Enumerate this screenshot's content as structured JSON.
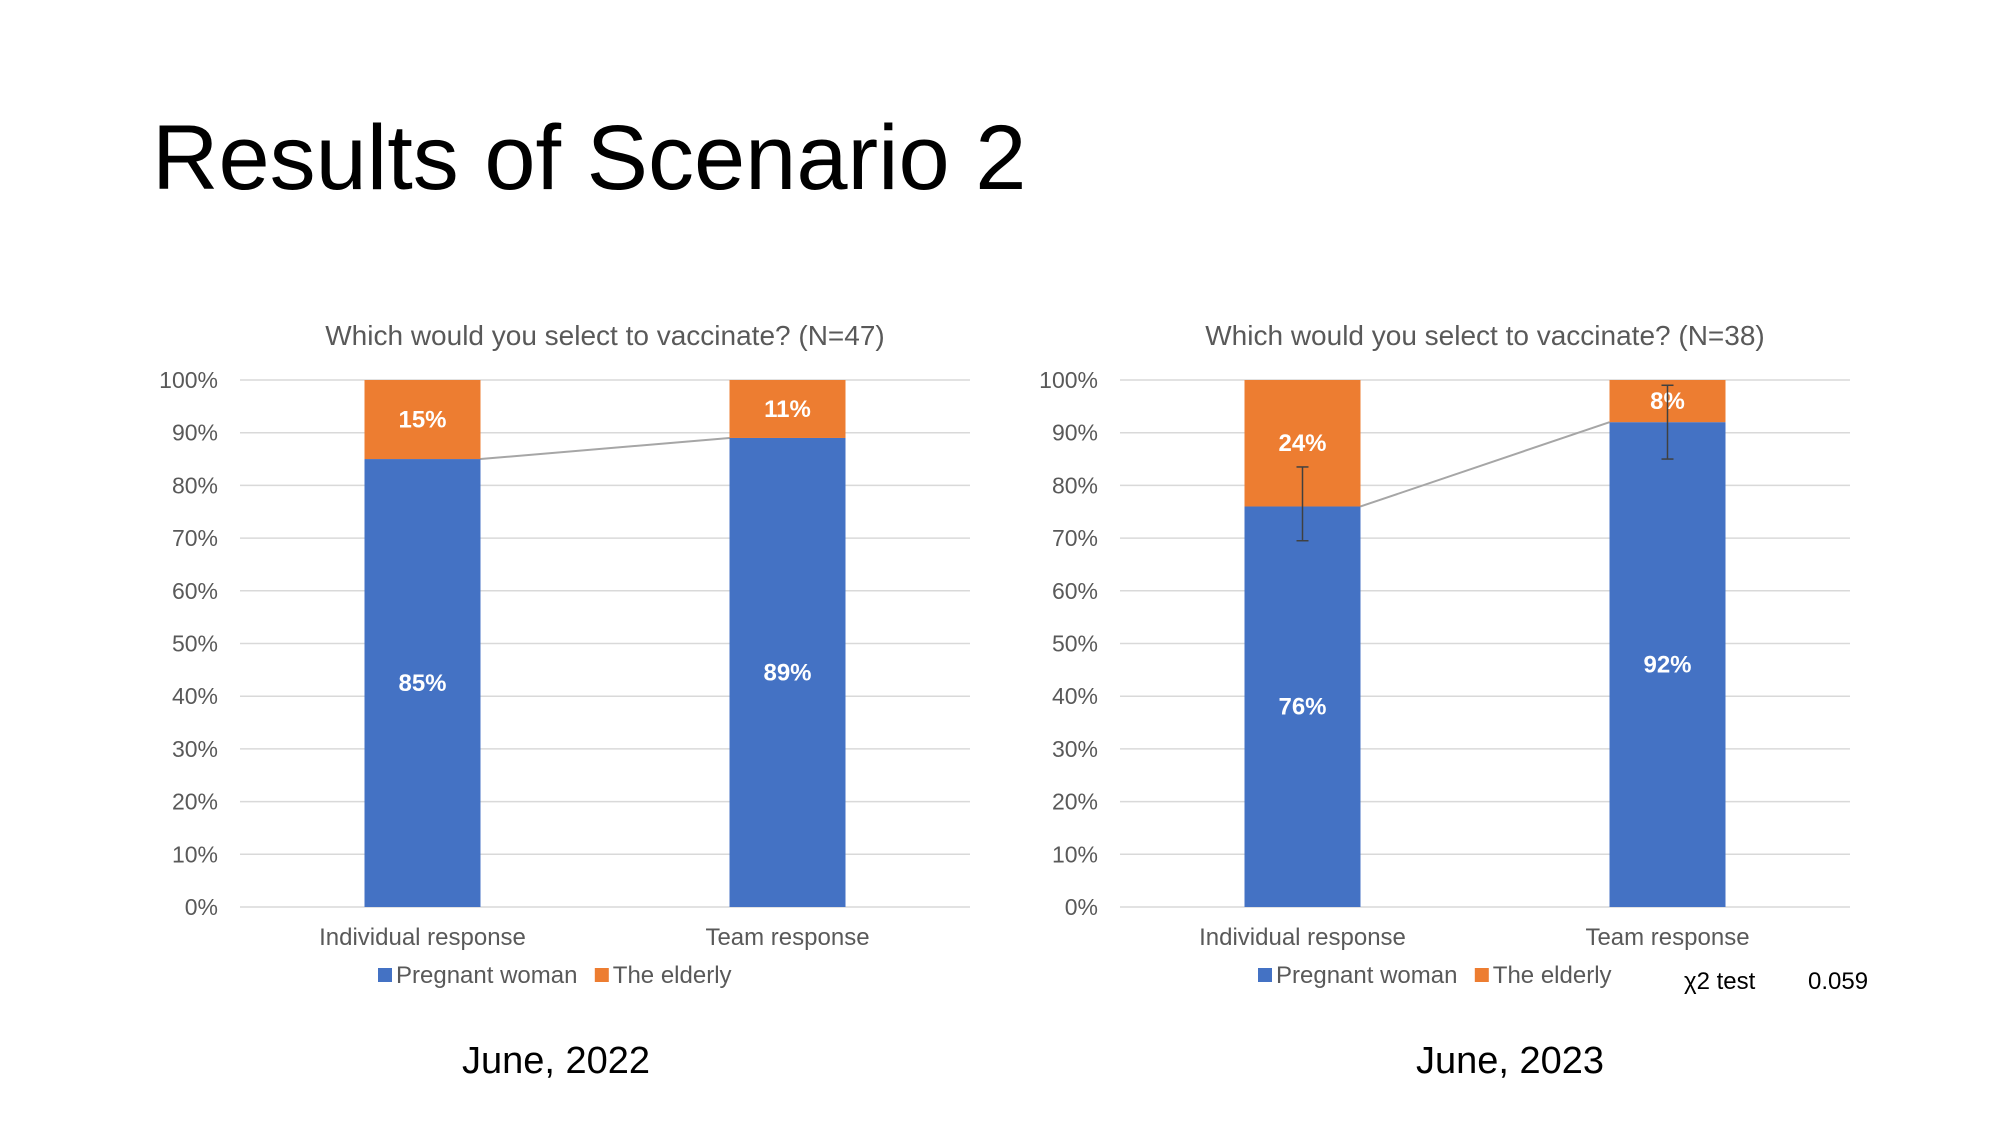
{
  "slide": {
    "title": "Results of Scenario 2",
    "captions": [
      "June, 2022",
      "June, 2023"
    ],
    "stat_label": "χ2 test",
    "stat_value": "0.059"
  },
  "colors": {
    "pregnant": "#4472C4",
    "elderly": "#ED7D31",
    "grid": "#D9D9D9",
    "axis_text": "#595959"
  },
  "chart_data": [
    {
      "type": "bar",
      "stacked": true,
      "title": "Which would you select to vaccinate? (N=47)",
      "categories": [
        "Individual response",
        "Team response"
      ],
      "series": [
        {
          "name": "Pregnant woman",
          "values": [
            85,
            89
          ],
          "labels": [
            "85%",
            "89%"
          ]
        },
        {
          "name": "The elderly",
          "values": [
            15,
            11
          ],
          "labels": [
            "15%",
            "11%"
          ]
        }
      ],
      "ylim": [
        0,
        100
      ],
      "yticks": [
        "0%",
        "10%",
        "20%",
        "30%",
        "40%",
        "50%",
        "60%",
        "70%",
        "80%",
        "90%",
        "100%"
      ],
      "series_lines": true,
      "error_bars": null,
      "legend": "bottom",
      "grid": true
    },
    {
      "type": "bar",
      "stacked": true,
      "title": "Which would you select to vaccinate? (N=38)",
      "categories": [
        "Individual response",
        "Team response"
      ],
      "series": [
        {
          "name": "Pregnant woman",
          "values": [
            76,
            92
          ],
          "labels": [
            "76%",
            "92%"
          ]
        },
        {
          "name": "The elderly",
          "values": [
            24,
            8
          ],
          "labels": [
            "24%",
            "8%"
          ]
        }
      ],
      "ylim": [
        0,
        100
      ],
      "yticks": [
        "0%",
        "10%",
        "20%",
        "30%",
        "40%",
        "50%",
        "60%",
        "70%",
        "80%",
        "90%",
        "100%"
      ],
      "series_lines": true,
      "error_bars": [
        [
          69.5,
          83.5
        ],
        [
          85,
          99
        ]
      ],
      "legend": "bottom",
      "grid": true
    }
  ]
}
